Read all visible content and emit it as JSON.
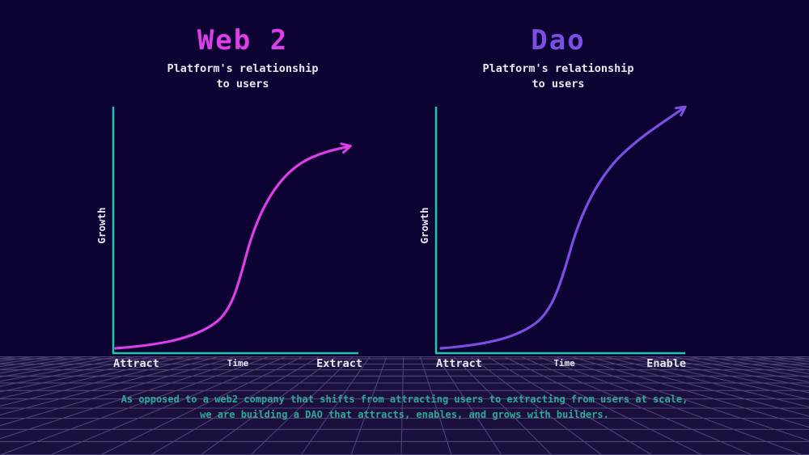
{
  "slide": {
    "colors": {
      "background": "#0d0333",
      "grid_background": "#1b103d",
      "grid_line": "#4f4277",
      "axis": "#20c5ad",
      "label_text": "#e9e7f2",
      "caption_text": "#2fa897"
    },
    "panels": [
      {
        "title": "Web 2",
        "subtitle": "Platform's relationship\nto users",
        "accent_color": "#dc3fe8",
        "y_axis_label": "Growth",
        "x_axis_label": "Time",
        "x_start_label": "Attract",
        "x_end_label": "Extract"
      },
      {
        "title": "Dao",
        "subtitle": "Platform's relationship\nto users",
        "accent_color": "#7b4fe4",
        "y_axis_label": "Growth",
        "x_axis_label": "Time",
        "x_start_label": "Attract",
        "x_end_label": "Enable"
      }
    ],
    "caption": "As opposed to a web2 company that shifts from attracting users to extracting from users at scale,\nwe are building a DAO that attracts, enables, and grows with builders."
  },
  "chart_data": [
    {
      "type": "line",
      "title": "Web 2",
      "xlabel": "Time",
      "ylabel": "Growth",
      "annotations": [
        "Attract",
        "Extract"
      ],
      "description": "Conceptual S-curve that rises steeply then flattens (growth plateaus)",
      "normalized_points": [
        [
          0,
          0
        ],
        [
          0.3,
          0.05
        ],
        [
          0.45,
          0.15
        ],
        [
          0.55,
          0.45
        ],
        [
          0.62,
          0.7
        ],
        [
          0.75,
          0.88
        ],
        [
          0.95,
          0.98
        ]
      ]
    },
    {
      "type": "line",
      "title": "Dao",
      "xlabel": "Time",
      "ylabel": "Growth",
      "annotations": [
        "Attract",
        "Enable"
      ],
      "description": "Conceptual S-curve that rises steeply and keeps climbing (sustained growth)",
      "normalized_points": [
        [
          0,
          0
        ],
        [
          0.3,
          0.05
        ],
        [
          0.45,
          0.15
        ],
        [
          0.55,
          0.45
        ],
        [
          0.65,
          0.7
        ],
        [
          0.8,
          0.88
        ],
        [
          0.98,
          1.0
        ]
      ]
    }
  ]
}
